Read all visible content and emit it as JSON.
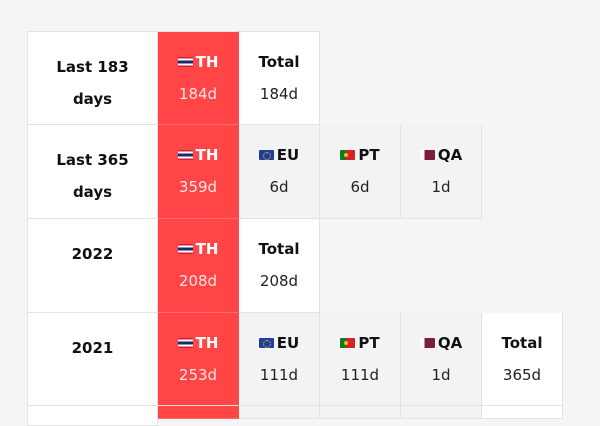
{
  "rows": [
    {
      "label": [
        "Last 183",
        "days"
      ],
      "cells": [
        {
          "flag": "th-flag-icon",
          "code": "TH",
          "days": "184d",
          "style": "highlight"
        },
        {
          "flag": "",
          "code": "Total",
          "days": "184d",
          "style": "plain"
        }
      ]
    },
    {
      "label": [
        "Last 365",
        "days"
      ],
      "cells": [
        {
          "flag": "th-flag-icon",
          "code": "TH",
          "days": "359d",
          "style": "highlight"
        },
        {
          "flag": "eu-flag-icon",
          "code": "EU",
          "days": "6d",
          "style": "gray"
        },
        {
          "flag": "pt-flag-icon",
          "code": "PT",
          "days": "6d",
          "style": "gray"
        },
        {
          "flag": "qa-flag-icon",
          "code": "QA",
          "days": "1d",
          "style": "gray"
        }
      ]
    },
    {
      "label": [
        "2022"
      ],
      "cells": [
        {
          "flag": "th-flag-icon",
          "code": "TH",
          "days": "208d",
          "style": "highlight"
        },
        {
          "flag": "",
          "code": "Total",
          "days": "208d",
          "style": "plain"
        }
      ]
    },
    {
      "label": [
        "2021"
      ],
      "cells": [
        {
          "flag": "th-flag-icon",
          "code": "TH",
          "days": "253d",
          "style": "highlight"
        },
        {
          "flag": "eu-flag-icon",
          "code": "EU",
          "days": "111d",
          "style": "gray"
        },
        {
          "flag": "pt-flag-icon",
          "code": "PT",
          "days": "111d",
          "style": "gray"
        },
        {
          "flag": "qa-flag-icon",
          "code": "QA",
          "days": "1d",
          "style": "gray"
        },
        {
          "flag": "",
          "code": "Total",
          "days": "365d",
          "style": "plain"
        }
      ]
    }
  ],
  "colors": {
    "highlight": "#ff4545",
    "gray": "#f3f3f3",
    "background": "#f5f5f5"
  }
}
